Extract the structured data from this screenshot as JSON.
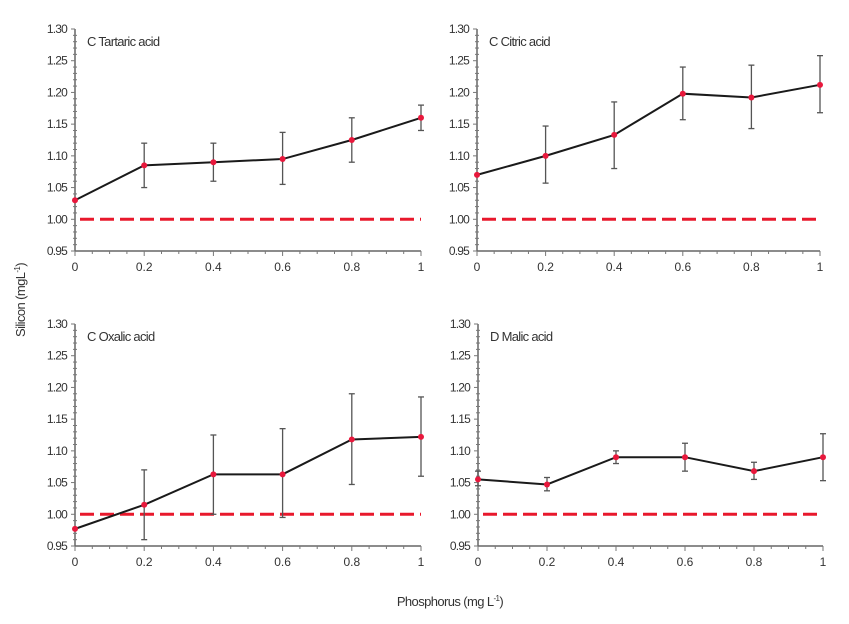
{
  "chart_data": {
    "type": "line",
    "ylabel": "Silicon (mgL",
    "ylabel_sup": "-1",
    "ylabel_end": ")",
    "xlabel": "Phosphorus (mg L",
    "xlabel_sup": "-1",
    "xlabel_end": ")",
    "x_ticks": [
      "0",
      "0.2",
      "0.4",
      "0.6",
      "0.8",
      "1"
    ],
    "y_ticks": [
      "0.95",
      "1.00",
      "1.05",
      "1.10",
      "1.15",
      "1.20",
      "1.25",
      "1.30"
    ],
    "xlim": [
      0,
      1
    ],
    "ylim": [
      0.95,
      1.3
    ],
    "grid": false,
    "colors": {
      "line": "#1a1a1a",
      "marker": "#e8183c",
      "reference": "#e8182c",
      "error_bar": "#555555"
    },
    "reference_line": 1.0,
    "panels": [
      {
        "title": "C Tartaric acid",
        "x": [
          0,
          0.2,
          0.4,
          0.6,
          0.8,
          1
        ],
        "y": [
          1.03,
          1.085,
          1.09,
          1.095,
          1.125,
          1.16
        ],
        "err_low": [
          null,
          1.05,
          1.06,
          1.055,
          1.09,
          1.14
        ],
        "err_high": [
          null,
          1.12,
          1.12,
          1.137,
          1.16,
          1.18
        ]
      },
      {
        "title": "C Citric acid",
        "x": [
          0,
          0.2,
          0.4,
          0.6,
          0.8,
          1
        ],
        "y": [
          1.07,
          1.1,
          1.133,
          1.198,
          1.192,
          1.212
        ],
        "err_low": [
          null,
          1.057,
          1.08,
          1.157,
          1.143,
          1.168
        ],
        "err_high": [
          null,
          1.147,
          1.185,
          1.24,
          1.243,
          1.258
        ]
      },
      {
        "title": "C Oxalic acid",
        "x": [
          0,
          0.2,
          0.4,
          0.6,
          0.8,
          1
        ],
        "y": [
          0.977,
          1.015,
          1.063,
          1.063,
          1.118,
          1.122
        ],
        "err_low": [
          null,
          0.96,
          1.0,
          0.995,
          1.047,
          1.06
        ],
        "err_high": [
          null,
          1.07,
          1.125,
          1.135,
          1.19,
          1.185
        ]
      },
      {
        "title": "D Malic acid",
        "x": [
          0,
          0.2,
          0.4,
          0.6,
          0.8,
          1
        ],
        "y": [
          1.055,
          1.047,
          1.09,
          1.09,
          1.068,
          1.09
        ],
        "err_low": [
          1.045,
          1.037,
          1.08,
          1.068,
          1.055,
          1.053
        ],
        "err_high": [
          1.068,
          1.058,
          1.1,
          1.112,
          1.082,
          1.127
        ]
      }
    ]
  }
}
